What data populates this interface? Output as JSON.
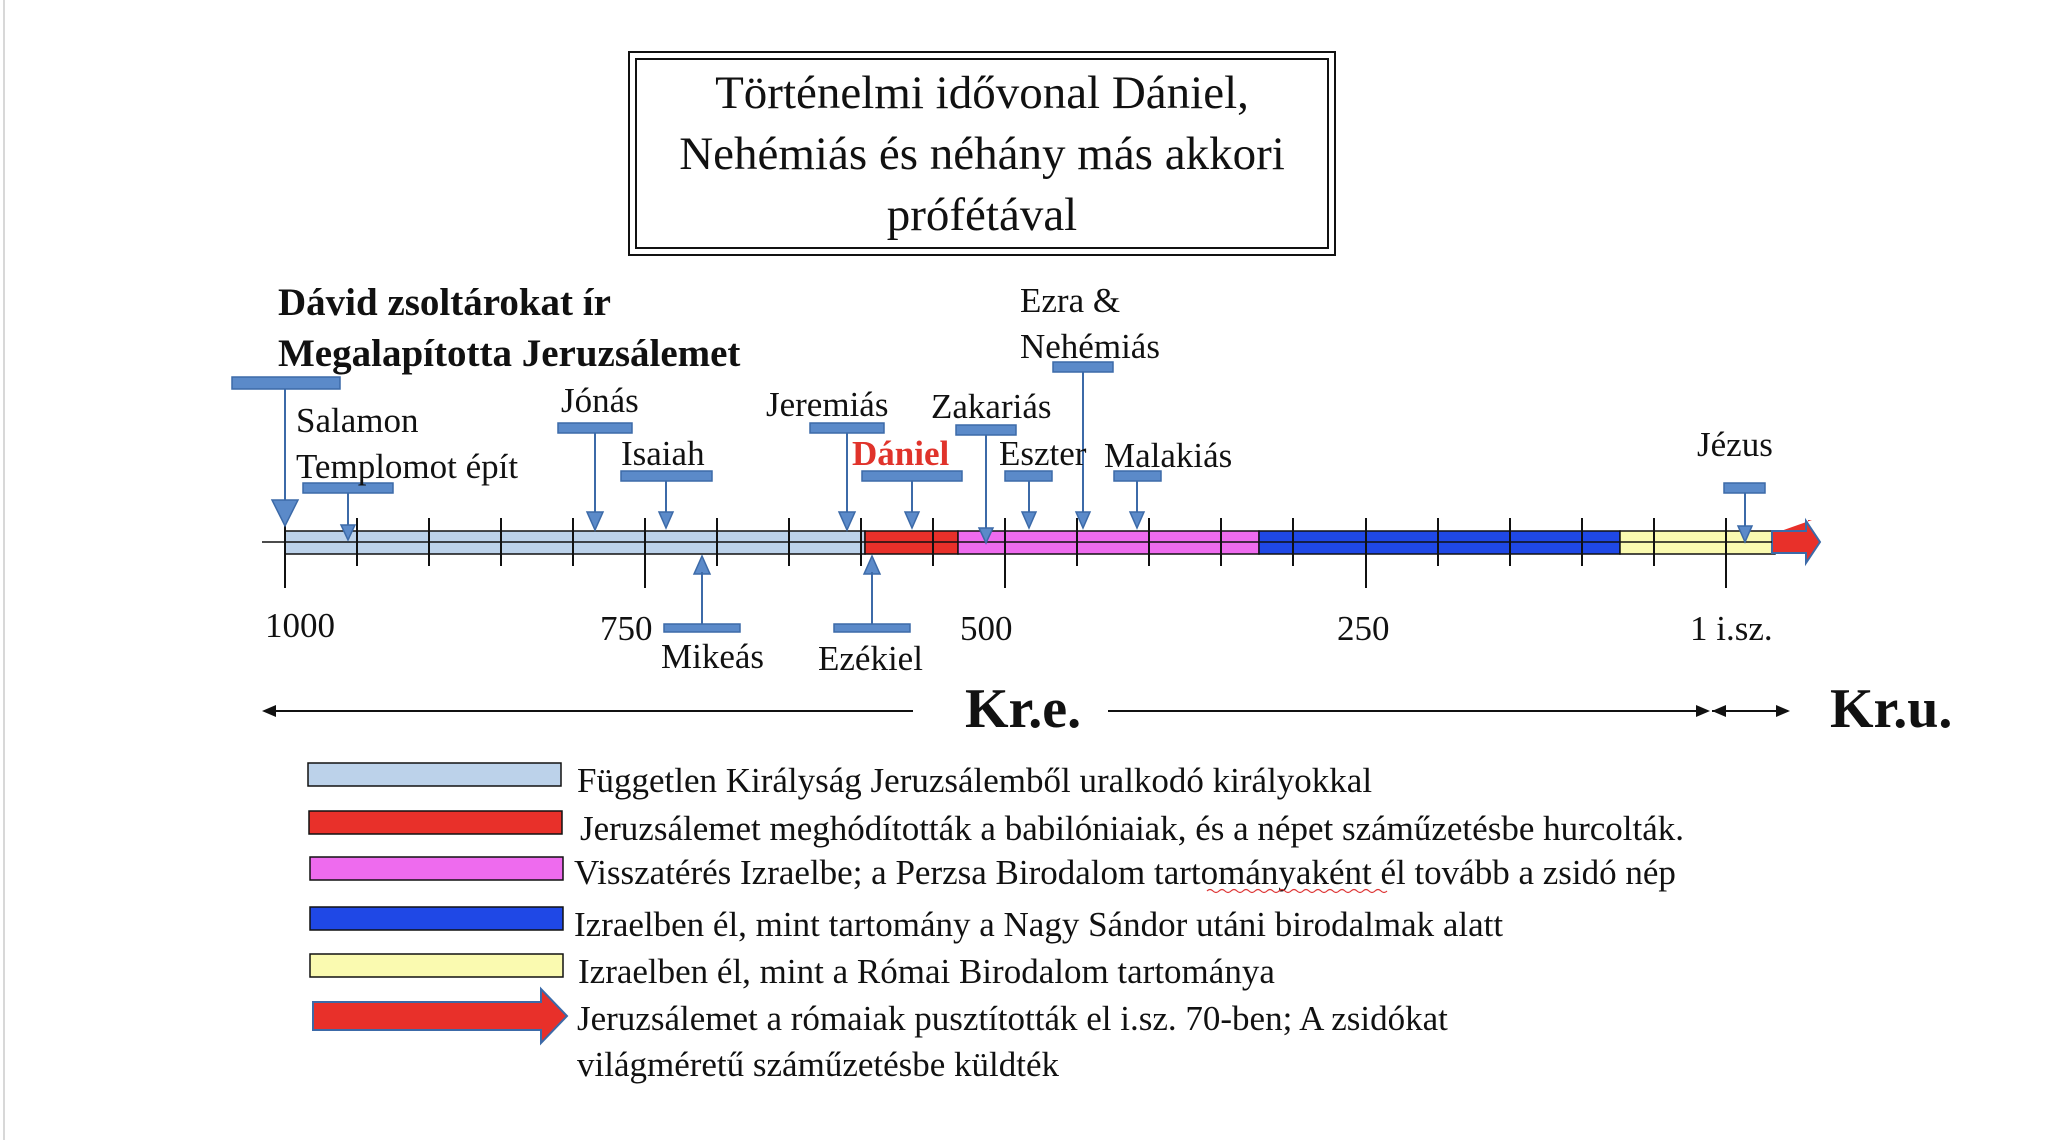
{
  "title": [
    "Történelmi idővonal Dániel,",
    "Nehémiás és néhány más akkori",
    "prófétával"
  ],
  "events_above": [
    {
      "id": "david",
      "lines": [
        "Dávid zsoltárokat ír",
        "Megalapította Jeruzsálemet"
      ],
      "bold": true
    },
    {
      "id": "salamon",
      "lines": [
        "Salamon",
        "Templomot épít"
      ]
    },
    {
      "id": "jonas",
      "lines": [
        "Jónás"
      ]
    },
    {
      "id": "isaiah",
      "lines": [
        "Isaiah"
      ]
    },
    {
      "id": "jeremias",
      "lines": [
        "Jeremiás"
      ]
    },
    {
      "id": "daniel",
      "lines": [
        "Dániel"
      ],
      "color": "#e0332b"
    },
    {
      "id": "zakarias",
      "lines": [
        "Zakariás"
      ]
    },
    {
      "id": "eszter",
      "lines": [
        "Eszter"
      ]
    },
    {
      "id": "ezra",
      "lines": [
        "Ezra &",
        "Nehémiás"
      ]
    },
    {
      "id": "malakias",
      "lines": [
        "Malakiás"
      ]
    },
    {
      "id": "jezus",
      "lines": [
        "Jézus"
      ]
    }
  ],
  "events_below": [
    {
      "id": "mikeas",
      "label": "Mikeás"
    },
    {
      "id": "ezekiel",
      "label": "Ezékiel"
    }
  ],
  "axis_ticks": [
    "1000",
    "750",
    "500",
    "250",
    "1 i.sz."
  ],
  "eras": {
    "bce": "Kr.e.",
    "ce": "Kr.u."
  },
  "periods": [
    {
      "color": "#bcd2ea"
    },
    {
      "color": "#e8302a"
    },
    {
      "color": "#ee6bee"
    },
    {
      "color": "#1f48e6"
    },
    {
      "color": "#fafab0"
    }
  ],
  "legend": [
    {
      "color": "#bcd2ea",
      "shape": "bar",
      "lines": [
        "Független Királyság Jeruzsálemből uralkodó királyokkal"
      ]
    },
    {
      "color": "#e8302a",
      "shape": "bar",
      "lines": [
        "Jeruzsálemet meghódították a babilóniaiak, és a népet száműzetésbe hurcolták."
      ]
    },
    {
      "color": "#ee6bee",
      "shape": "bar",
      "lines": [
        "Visszatérés Izraelbe; a Perzsa Birodalom tartományaként él tovább a zsidó nép"
      ]
    },
    {
      "color": "#1f48e6",
      "shape": "bar",
      "lines": [
        "Izraelben él, mint tartomány a Nagy Sándor utáni birodalmak alatt"
      ]
    },
    {
      "color": "#fafab0",
      "shape": "bar",
      "lines": [
        "Izraelben él, mint a Római Birodalom tartománya"
      ]
    },
    {
      "color": "#e8302a",
      "shape": "arrow",
      "lines": [
        "Jeruzsálemet a rómaiak pusztították el i.sz. 70-ben; A zsidókat",
        "világméretű száműzetésbe küldték"
      ]
    }
  ],
  "colors": {
    "marker_fill": "#5b8ac9",
    "marker_stroke": "#3c6aa8",
    "axis": "#111111",
    "era_arrow": "#e8302a"
  }
}
